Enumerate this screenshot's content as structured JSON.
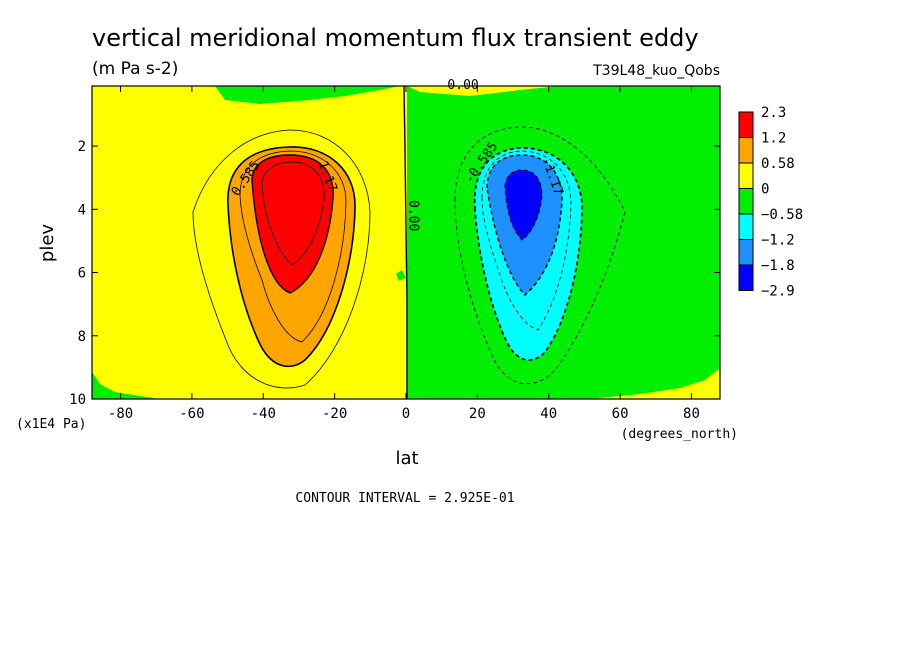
{
  "chart_data": {
    "type": "heatmap",
    "title": "vertical meridional momentum flux transient eddy",
    "units": "(m Pa s-2)",
    "dataset": "T39L48_kuo_Qobs",
    "xlabel": "lat",
    "x_units": "(degrees_north)",
    "ylabel": "plev",
    "y_units": "(x1E4 Pa)",
    "footer": "CONTOUR INTERVAL = 2.925E-01",
    "xlim": [
      -88,
      88
    ],
    "ylim": [
      10,
      0.1
    ],
    "y_inverted": true,
    "x_ticks": [
      -80,
      -60,
      -40,
      -20,
      0,
      20,
      40,
      60,
      80
    ],
    "y_ticks": [
      2,
      4,
      6,
      8,
      10
    ],
    "grid": false,
    "legend": "right",
    "colorbar": {
      "labels": [
        "2.3",
        "1.2",
        "0.58",
        "0",
        "-0.58",
        "-1.2",
        "-1.8",
        "-2.9"
      ],
      "colors": [
        "#ff0000",
        "#ffa500",
        "#ffff00",
        "#00ee00",
        "#00ffff",
        "#1e90ff",
        "#0000ff"
      ]
    },
    "contour_labels": [
      {
        "text": "0.585",
        "lat": -44,
        "plev": 3.1,
        "angle": -55
      },
      {
        "text": "1.17",
        "lat": -23,
        "plev": 3.0,
        "angle": 70
      },
      {
        "text": "0.00",
        "lat": 1,
        "plev": 4.2,
        "angle": 90
      },
      {
        "text": "0.00",
        "lat": 16,
        "plev": 0.2,
        "angle": 0
      },
      {
        "text": "-0.585",
        "lat": 22,
        "plev": 2.6,
        "angle": -55
      },
      {
        "text": "-1.17",
        "lat": 40,
        "plev": 3.0,
        "angle": 70
      }
    ],
    "extrema": {
      "max": {
        "lat": -34,
        "plev": 4.0,
        "value": 2.3
      },
      "min": {
        "lat": 33,
        "plev": 4.0,
        "value": -2.9
      }
    }
  }
}
